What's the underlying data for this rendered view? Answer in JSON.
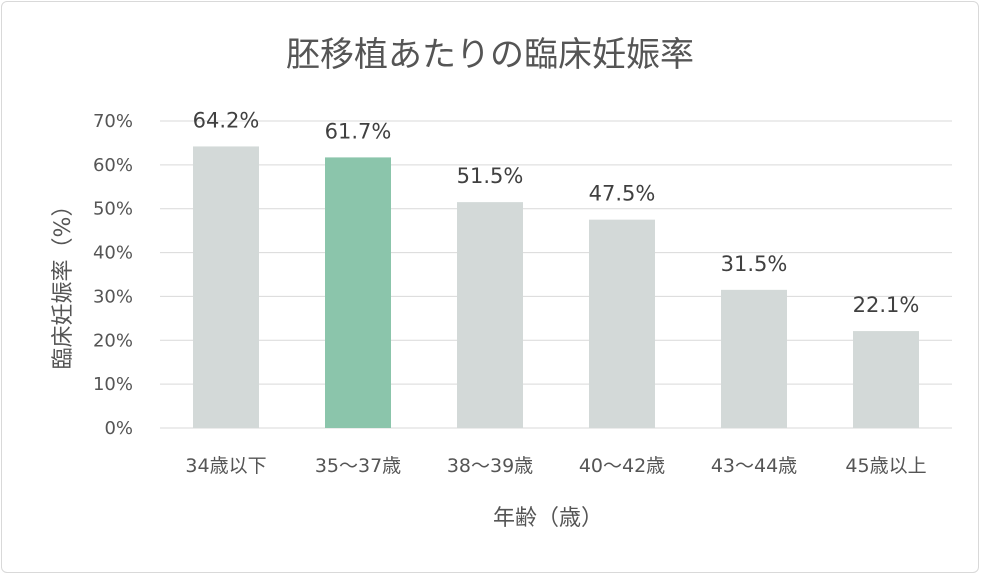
{
  "chart_data": {
    "type": "bar",
    "title": "胚移植あたりの臨床妊娠率",
    "xlabel": "年齢（歳）",
    "ylabel": "臨床妊娠率（%）",
    "categories": [
      "34歳以下",
      "35〜37歳",
      "38〜39歳",
      "40〜42歳",
      "43〜44歳",
      "45歳以上"
    ],
    "values": [
      64.2,
      61.7,
      51.5,
      47.5,
      31.5,
      22.1
    ],
    "data_labels": [
      "64.2%",
      "61.7%",
      "51.5%",
      "47.5%",
      "31.5%",
      "22.1%"
    ],
    "highlight_index": 1,
    "ylim": [
      0,
      70
    ],
    "yticks": [
      0,
      10,
      20,
      30,
      40,
      50,
      60,
      70
    ],
    "ytick_labels": [
      "0%",
      "10%",
      "20%",
      "30%",
      "40%",
      "50%",
      "60%",
      "70%"
    ],
    "grid": true,
    "legend": "none",
    "colors": {
      "bar": "#d3d9d8",
      "highlight": "#8bc5ab",
      "grid": "#d9d9d9",
      "text": "#555555"
    }
  }
}
